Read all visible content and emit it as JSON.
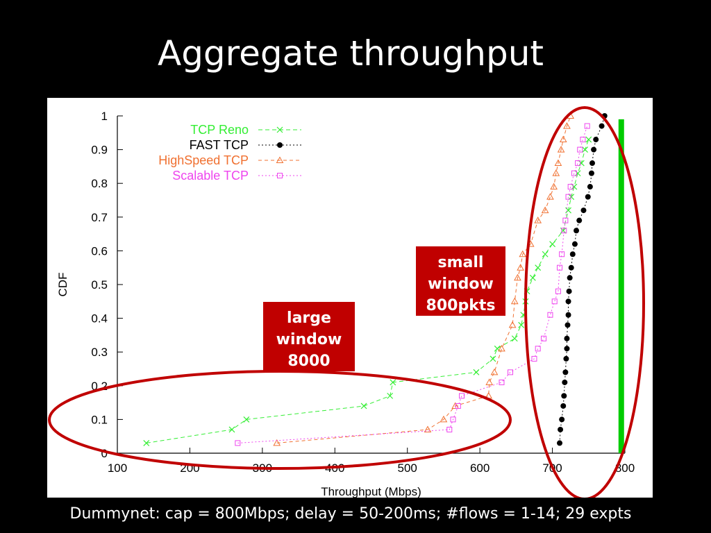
{
  "slide": {
    "title": "Aggregate throughput",
    "footer": "Dummynet: cap = 800Mbps; delay = 50-200ms; #flows = 1-14; 29 expts"
  },
  "annotations": {
    "large_window": [
      "large",
      "window",
      "8000"
    ],
    "small_window": [
      "small",
      "window",
      "800pkts"
    ],
    "box_color": "#c00000",
    "ellipse_color": "#c00000",
    "capacity_line_color": "#00cc00",
    "capacity_value": 795
  },
  "chart_data": {
    "type": "line",
    "xlabel": "Throughput (Mbps)",
    "ylabel": "CDF",
    "xlim": [
      100,
      800
    ],
    "ylim": [
      0,
      1
    ],
    "xticks": [
      100,
      200,
      300,
      400,
      500,
      600,
      700,
      800
    ],
    "yticks": [
      0,
      0.1,
      0.2,
      0.3,
      0.4,
      0.5,
      0.6,
      0.7,
      0.8,
      0.9,
      1
    ],
    "ytick_labels": [
      "0",
      "0.1",
      "0.2",
      "0.3",
      "0.4",
      "0.5",
      "0.6",
      "0.7",
      "0.8",
      "0.9",
      "1"
    ],
    "grid": false,
    "legend_position": "top-left",
    "series": [
      {
        "name": "TCP Reno",
        "color": "#33ee33",
        "marker": "x",
        "dash": "6,4",
        "x": [
          140,
          258,
          278,
          440,
          476,
          480,
          595,
          618,
          624,
          648,
          657,
          660,
          663,
          665,
          673,
          680,
          690,
          700,
          715,
          722,
          726,
          730,
          735,
          740,
          745,
          750
        ],
        "y": [
          0.03,
          0.07,
          0.1,
          0.14,
          0.17,
          0.21,
          0.24,
          0.28,
          0.31,
          0.34,
          0.38,
          0.41,
          0.45,
          0.48,
          0.52,
          0.55,
          0.59,
          0.62,
          0.66,
          0.72,
          0.76,
          0.79,
          0.83,
          0.86,
          0.9,
          0.93
        ]
      },
      {
        "name": "FAST TCP",
        "color": "#000000",
        "marker": "circle",
        "dash": "2,3",
        "x": [
          710,
          711,
          713,
          715,
          716,
          717,
          718,
          719,
          720,
          720,
          721,
          722,
          722,
          723,
          724,
          726,
          728,
          731,
          733,
          737,
          743,
          749,
          752,
          754,
          755,
          757,
          760,
          768,
          772
        ],
        "y": [
          0.03,
          0.07,
          0.1,
          0.14,
          0.17,
          0.21,
          0.24,
          0.28,
          0.31,
          0.34,
          0.38,
          0.41,
          0.45,
          0.48,
          0.52,
          0.55,
          0.59,
          0.62,
          0.66,
          0.69,
          0.72,
          0.76,
          0.79,
          0.83,
          0.86,
          0.9,
          0.93,
          0.97,
          1.0
        ]
      },
      {
        "name": "HighSpeed TCP",
        "color": "#f07030",
        "marker": "triangle",
        "dash": "5,4",
        "x": [
          320,
          528,
          550,
          566,
          612,
          613,
          620,
          630,
          645,
          648,
          652,
          656,
          659,
          670,
          680,
          690,
          697,
          702,
          705,
          708,
          712,
          715,
          720,
          725
        ],
        "y": [
          0.03,
          0.07,
          0.1,
          0.14,
          0.17,
          0.21,
          0.24,
          0.31,
          0.38,
          0.45,
          0.52,
          0.55,
          0.59,
          0.62,
          0.69,
          0.72,
          0.76,
          0.79,
          0.83,
          0.86,
          0.9,
          0.93,
          0.97,
          1.0
        ]
      },
      {
        "name": "Scalable TCP",
        "color": "#ee44ee",
        "marker": "square",
        "dash": "2,3",
        "x": [
          266,
          558,
          563,
          570,
          575,
          630,
          642,
          675,
          680,
          688,
          697,
          703,
          708,
          710,
          713,
          716,
          718,
          722,
          725,
          730,
          735,
          738,
          742,
          748
        ],
        "y": [
          0.03,
          0.07,
          0.1,
          0.14,
          0.17,
          0.21,
          0.24,
          0.28,
          0.31,
          0.34,
          0.41,
          0.45,
          0.48,
          0.55,
          0.59,
          0.66,
          0.69,
          0.76,
          0.79,
          0.83,
          0.86,
          0.9,
          0.93,
          0.97
        ]
      }
    ]
  }
}
